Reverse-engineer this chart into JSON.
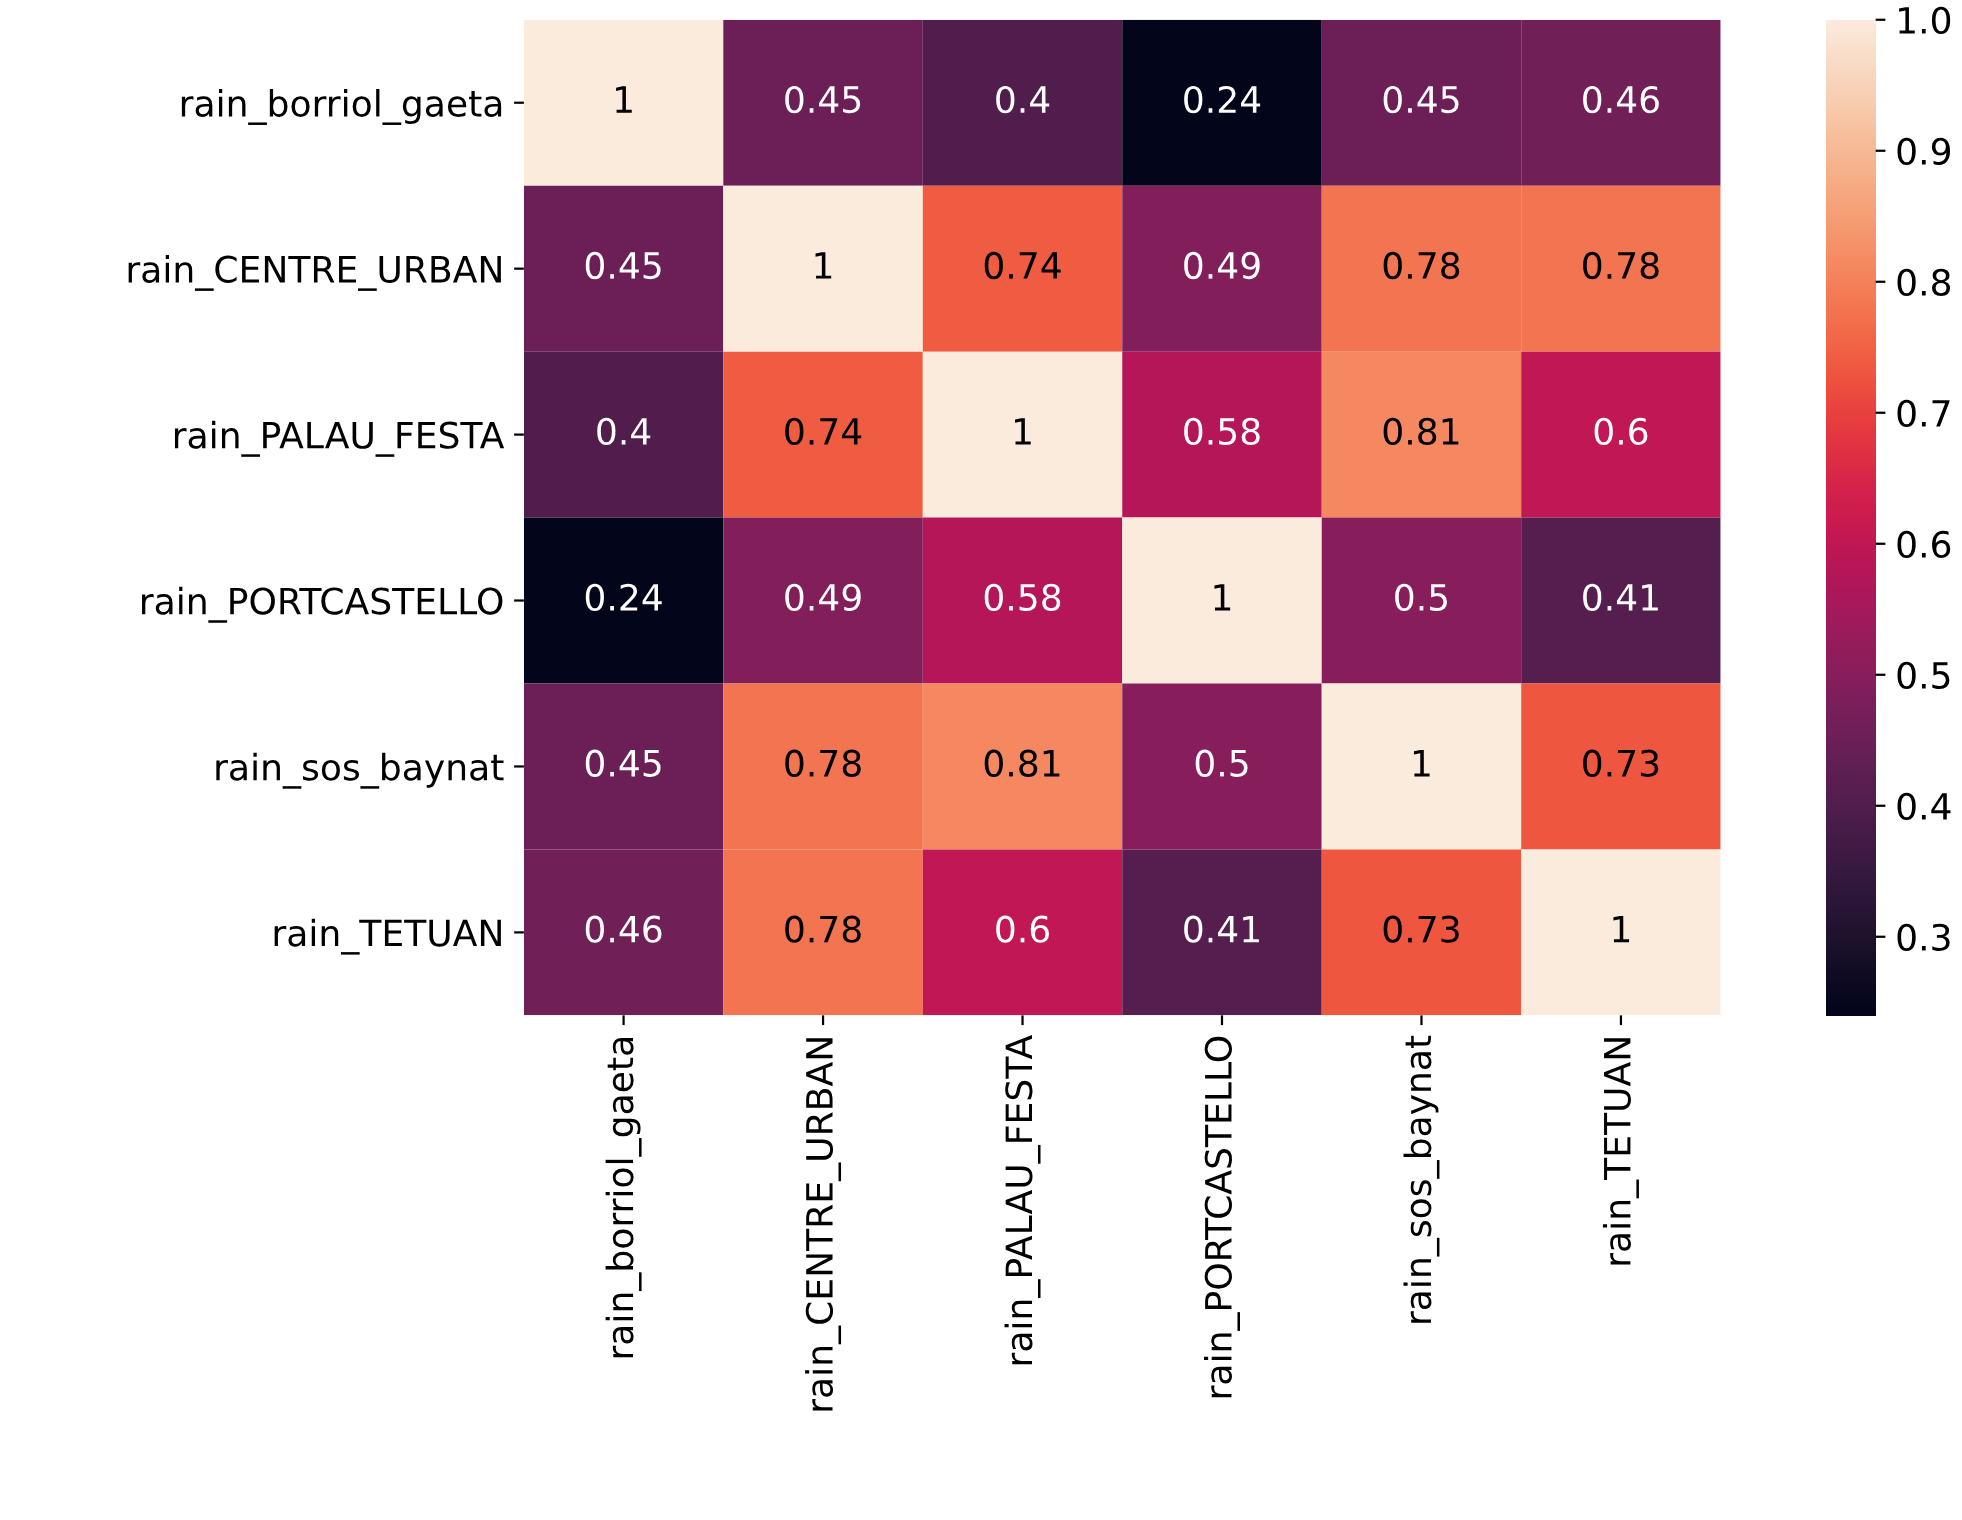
{
  "chart_data": {
    "type": "heatmap",
    "categories": [
      "rain_borriol_gaeta",
      "rain_CENTRE_URBAN",
      "rain_PALAU_FESTA",
      "rain_PORTCASTELLO",
      "rain_sos_baynat",
      "rain_TETUAN"
    ],
    "y_categories": [
      "rain_borriol_gaeta",
      "rain_CENTRE_URBAN",
      "rain_PALAU_FESTA",
      "rain_PORTCASTELLO",
      "rain_sos_baynat",
      "rain_TETUAN"
    ],
    "cells": [
      [
        1,
        0.45,
        0.4,
        0.24,
        0.45,
        0.46
      ],
      [
        0.45,
        1,
        0.74,
        0.49,
        0.78,
        0.78
      ],
      [
        0.4,
        0.74,
        1,
        0.58,
        0.81,
        0.6
      ],
      [
        0.24,
        0.49,
        0.58,
        1,
        0.5,
        0.41
      ],
      [
        0.45,
        0.78,
        0.81,
        0.5,
        1,
        0.73
      ],
      [
        0.46,
        0.78,
        0.6,
        0.41,
        0.73,
        1
      ]
    ],
    "clim": [
      0.24,
      1
    ],
    "cticks": [
      0.3,
      0.4,
      0.5,
      0.6,
      0.7,
      0.8,
      0.9,
      {
        "value": 1,
        "label": "1.0"
      }
    ],
    "data_labels": true
  }
}
